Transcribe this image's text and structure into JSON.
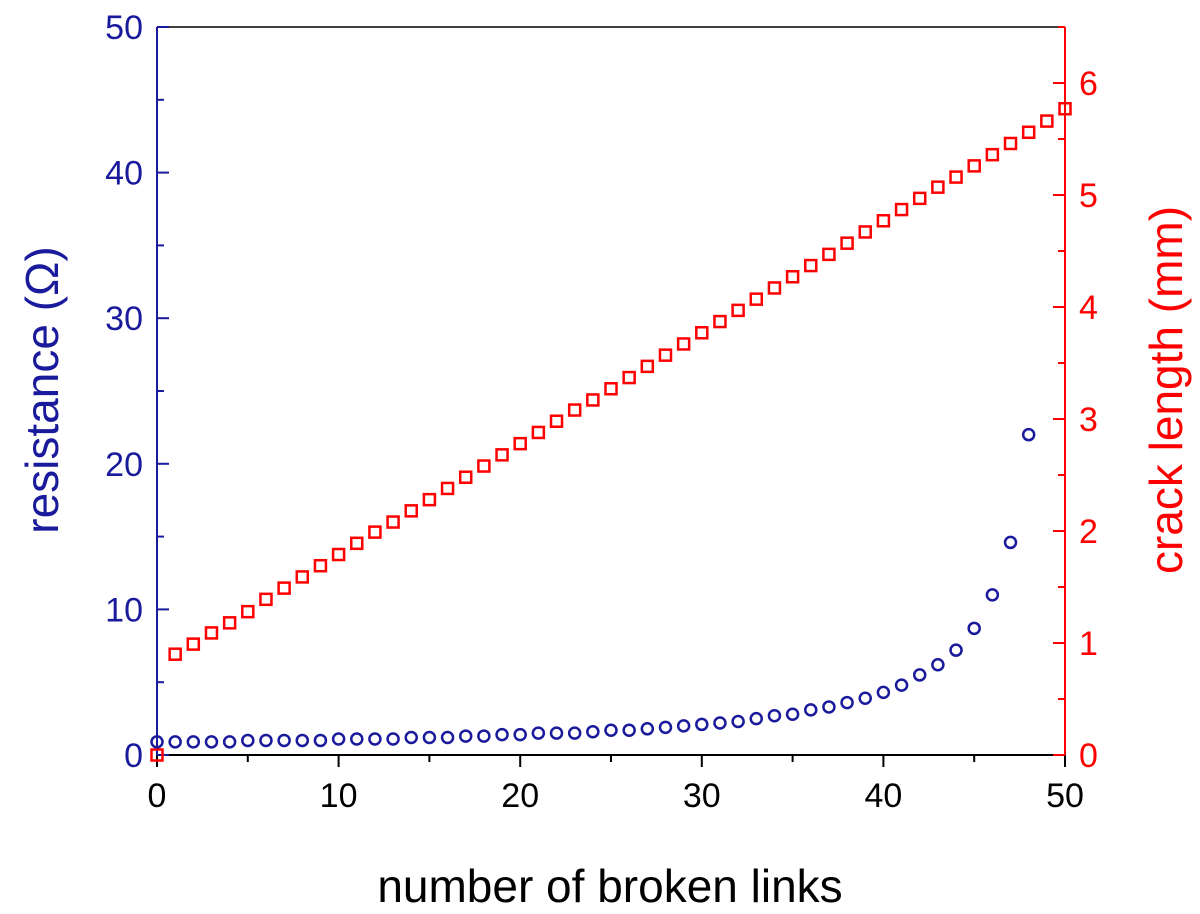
{
  "chart_data": {
    "type": "scatter",
    "xlabel": "number of broken links",
    "ylabel_left": "resistance (Ω)",
    "ylabel_right": "crack length (mm)",
    "xlim": [
      0,
      50
    ],
    "ylim_left": [
      0,
      50
    ],
    "ylim_right": [
      0,
      6.5
    ],
    "x_ticks": [
      "0",
      "10",
      "20",
      "30",
      "40",
      "50"
    ],
    "y_left_ticks": [
      "0",
      "10",
      "20",
      "30",
      "40",
      "50"
    ],
    "y_right_ticks": [
      "0",
      "1",
      "2",
      "3",
      "4",
      "5",
      "6"
    ],
    "grid": false,
    "legend": "none",
    "colors": {
      "resistance": "#1a1a9c",
      "crack_length": "#ff0000",
      "axis": "#000000"
    },
    "series": [
      {
        "axis": "left",
        "marker": "circle",
        "color": "#1a1a9c",
        "x": [
          0,
          1,
          2,
          3,
          4,
          5,
          6,
          7,
          8,
          9,
          10,
          11,
          12,
          13,
          14,
          15,
          16,
          17,
          18,
          19,
          20,
          21,
          22,
          23,
          24,
          25,
          26,
          27,
          28,
          29,
          30,
          31,
          32,
          33,
          34,
          35,
          36,
          37,
          38,
          39,
          40,
          41,
          42,
          43,
          44,
          45,
          46,
          47,
          48
        ],
        "y": [
          0.9,
          0.9,
          0.9,
          0.9,
          0.9,
          1.0,
          1.0,
          1.0,
          1.0,
          1.0,
          1.1,
          1.1,
          1.1,
          1.1,
          1.2,
          1.2,
          1.2,
          1.3,
          1.3,
          1.4,
          1.4,
          1.5,
          1.5,
          1.5,
          1.6,
          1.7,
          1.7,
          1.8,
          1.9,
          2.0,
          2.1,
          2.2,
          2.3,
          2.5,
          2.7,
          2.8,
          3.1,
          3.3,
          3.6,
          3.9,
          4.3,
          4.8,
          5.5,
          6.2,
          7.2,
          8.7,
          11.0,
          14.6,
          22.0
        ]
      },
      {
        "axis": "right",
        "marker": "square",
        "color": "#ff0000",
        "x": [
          0,
          1,
          2,
          3,
          4,
          5,
          6,
          7,
          8,
          9,
          10,
          11,
          12,
          13,
          14,
          15,
          16,
          17,
          18,
          19,
          20,
          21,
          22,
          23,
          24,
          25,
          26,
          27,
          28,
          29,
          30,
          31,
          32,
          33,
          34,
          35,
          36,
          37,
          38,
          39,
          40,
          41,
          42,
          43,
          44,
          45,
          46,
          47,
          48,
          49,
          50
        ],
        "y": [
          0,
          0.9,
          0.99,
          1.09,
          1.18,
          1.28,
          1.39,
          1.49,
          1.59,
          1.69,
          1.79,
          1.89,
          1.99,
          2.08,
          2.18,
          2.28,
          2.38,
          2.48,
          2.58,
          2.68,
          2.78,
          2.88,
          2.98,
          3.08,
          3.17,
          3.27,
          3.37,
          3.47,
          3.57,
          3.67,
          3.77,
          3.87,
          3.97,
          4.07,
          4.17,
          4.27,
          4.37,
          4.47,
          4.57,
          4.67,
          4.77,
          4.87,
          4.97,
          5.07,
          5.16,
          5.26,
          5.36,
          5.46,
          5.56,
          5.66,
          5.77
        ]
      }
    ]
  }
}
